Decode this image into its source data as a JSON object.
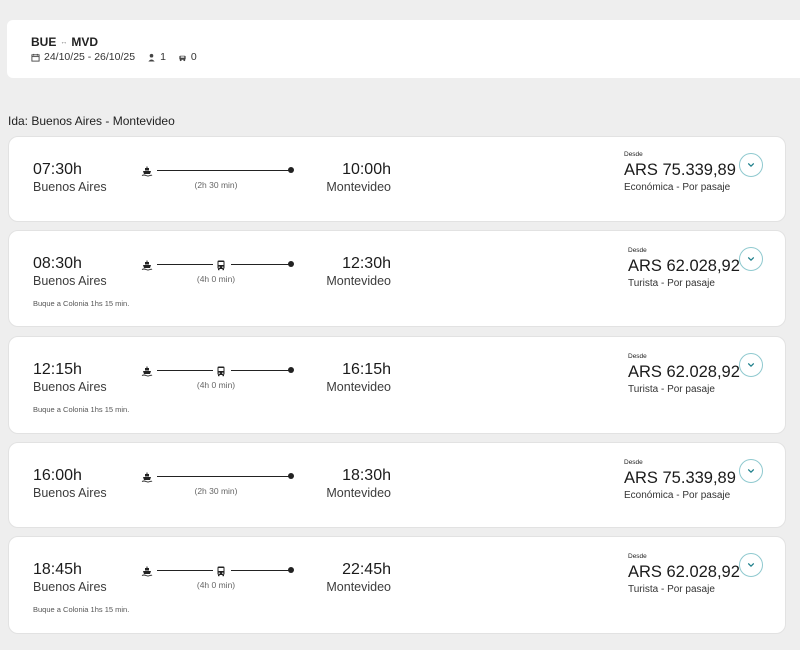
{
  "search": {
    "origin": "BUE",
    "destination": "MVD",
    "dates": "24/10/25 - 26/10/25",
    "passengers": "1",
    "vehicles": "0"
  },
  "section_title": "Ida: Buenos Aires - Montevideo",
  "trips": [
    {
      "departure_time": "07:30h",
      "departure_city": "Buenos Aires",
      "arrival_time": "10:00h",
      "arrival_city": "Montevideo",
      "duration": "(2h 30 min)",
      "note": "",
      "desde": "Desde",
      "price": "ARS 75.339,89",
      "fare": "Económica - Por pasaje",
      "legs": [
        "ferry"
      ]
    },
    {
      "departure_time": "08:30h",
      "departure_city": "Buenos Aires",
      "arrival_time": "12:30h",
      "arrival_city": "Montevideo",
      "duration": "(4h 0 min)",
      "note": "Buque a Colonia 1hs 15 min.",
      "desde": "Desde",
      "price": "ARS 62.028,92",
      "fare": "Turista - Por pasaje",
      "legs": [
        "ferry",
        "bus"
      ]
    },
    {
      "departure_time": "12:15h",
      "departure_city": "Buenos Aires",
      "arrival_time": "16:15h",
      "arrival_city": "Montevideo",
      "duration": "(4h 0 min)",
      "note": "Buque a Colonia 1hs 15 min.",
      "desde": "Desde",
      "price": "ARS 62.028,92",
      "fare": "Turista - Por pasaje",
      "legs": [
        "ferry",
        "bus"
      ]
    },
    {
      "departure_time": "16:00h",
      "departure_city": "Buenos Aires",
      "arrival_time": "18:30h",
      "arrival_city": "Montevideo",
      "duration": "(2h 30 min)",
      "note": "",
      "desde": "Desde",
      "price": "ARS 75.339,89",
      "fare": "Económica - Por pasaje",
      "legs": [
        "ferry"
      ]
    },
    {
      "departure_time": "18:45h",
      "departure_city": "Buenos Aires",
      "arrival_time": "22:45h",
      "arrival_city": "Montevideo",
      "duration": "(4h 0 min)",
      "note": "Buque a Colonia 1hs 15 min.",
      "desde": "Desde",
      "price": "ARS 62.028,92",
      "fare": "Turista - Por pasaje",
      "legs": [
        "ferry",
        "bus"
      ]
    }
  ],
  "colors": {
    "expand_border": "#8fc9cf",
    "expand_chevron": "#1d7f8a",
    "background": "#eeeeee"
  },
  "icons": {
    "calendar": "calendar-icon",
    "passenger": "person-icon",
    "vehicle": "car-icon",
    "ferry": "ferry-icon",
    "bus": "bus-icon",
    "expand": "chevron-down-icon"
  }
}
